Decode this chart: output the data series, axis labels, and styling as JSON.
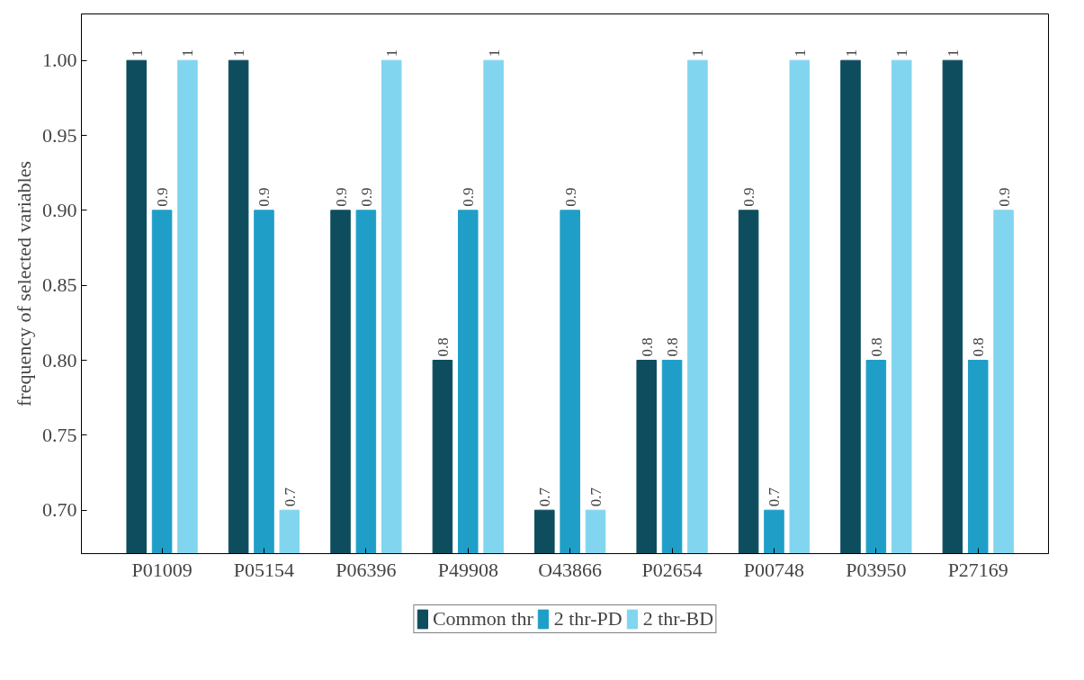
{
  "chart_data": {
    "type": "bar",
    "ylabel": "frequency of selected variables",
    "categories": [
      "P01009",
      "P05154",
      "P06396",
      "P49908",
      "O43866",
      "P02654",
      "P00748",
      "P03950",
      "P27169"
    ],
    "series": [
      {
        "name": "Common thr",
        "color": "#0e4d5e",
        "values": [
          1,
          1,
          0.9,
          0.8,
          0.7,
          0.8,
          0.9,
          1,
          1
        ]
      },
      {
        "name": "2 thr-PD",
        "color": "#1f9fc7",
        "values": [
          0.9,
          0.9,
          0.9,
          0.9,
          0.9,
          0.8,
          0.7,
          0.8,
          0.8
        ]
      },
      {
        "name": "2 thr-BD",
        "color": "#82d5ee",
        "values": [
          1,
          0.7,
          1,
          1,
          0.7,
          1,
          1,
          1,
          0.9
        ]
      }
    ],
    "ylim": [
      0.671,
      1.031
    ],
    "yticks": [
      {
        "value": 0.7,
        "label": "0.70"
      },
      {
        "value": 0.75,
        "label": "0.75"
      },
      {
        "value": 0.8,
        "label": "0.80"
      },
      {
        "value": 0.85,
        "label": "0.85"
      },
      {
        "value": 0.9,
        "label": "0.90"
      },
      {
        "value": 0.95,
        "label": "0.95"
      },
      {
        "value": 1,
        "label": "1.00"
      }
    ],
    "data_labels": true,
    "grid": false,
    "legend": "bottom"
  }
}
